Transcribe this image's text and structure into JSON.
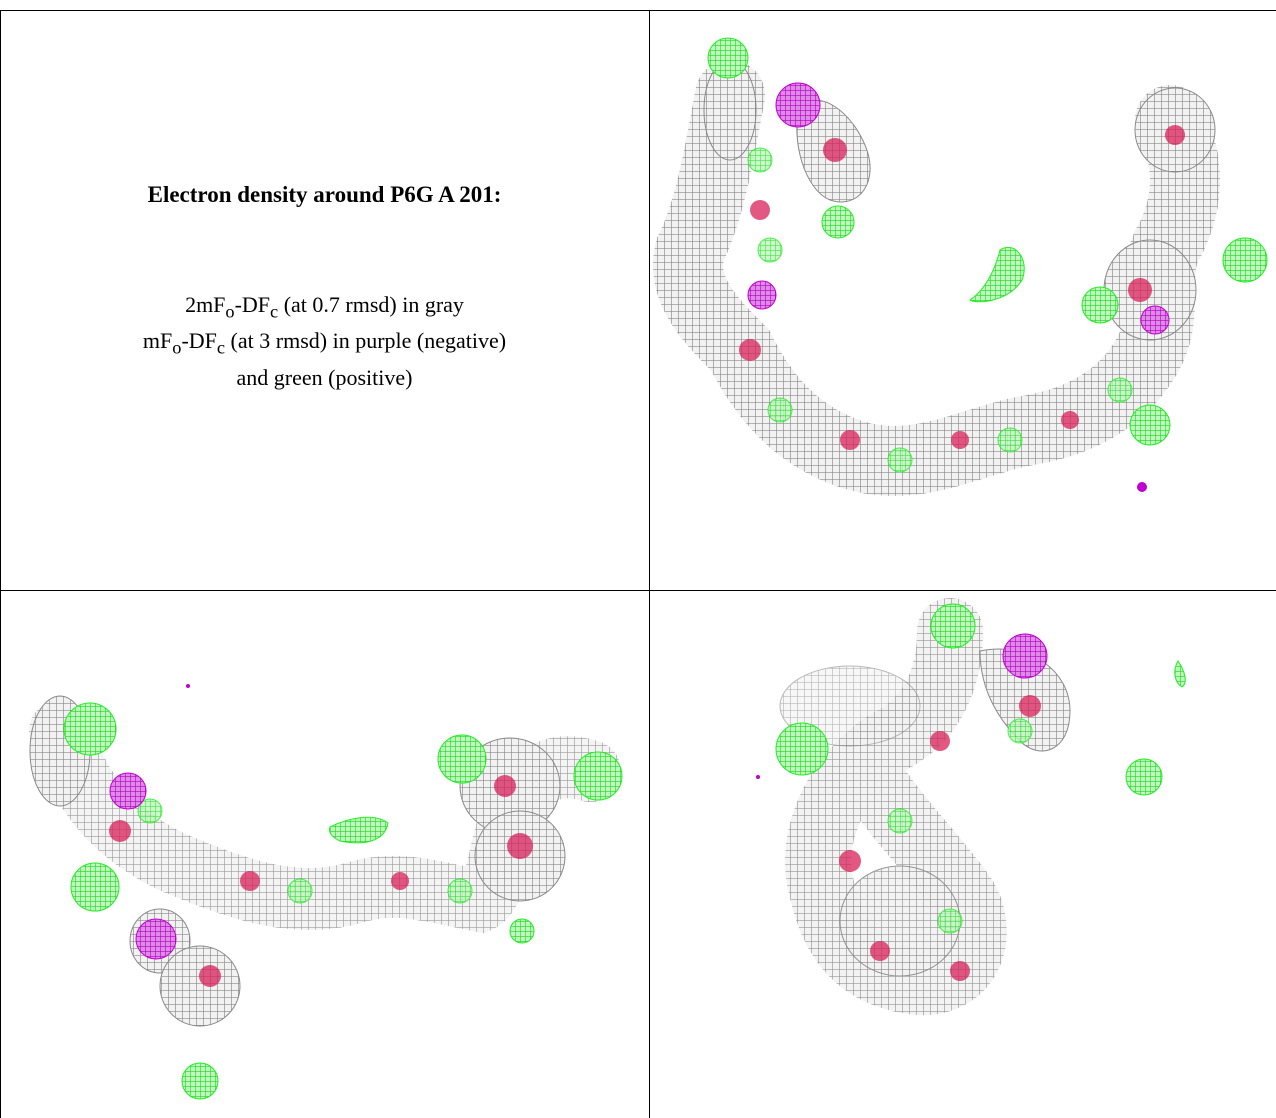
{
  "figure": {
    "title": "Electron density around P6G A 201:",
    "legend_lines": [
      "2mFo-DFc (at 0.7 rmsd) in gray",
      "mFo-DFc (at 3 rmsd) in purple (negative)",
      "and green (positive)"
    ],
    "colors": {
      "map_2fofc": "#9a9a9a",
      "map_fofc_negative": "#c000d0",
      "map_fofc_positive": "#22ee22",
      "atom_oxygen": "#d8205a"
    },
    "views": [
      "view-1",
      "view-2",
      "view-3"
    ]
  }
}
